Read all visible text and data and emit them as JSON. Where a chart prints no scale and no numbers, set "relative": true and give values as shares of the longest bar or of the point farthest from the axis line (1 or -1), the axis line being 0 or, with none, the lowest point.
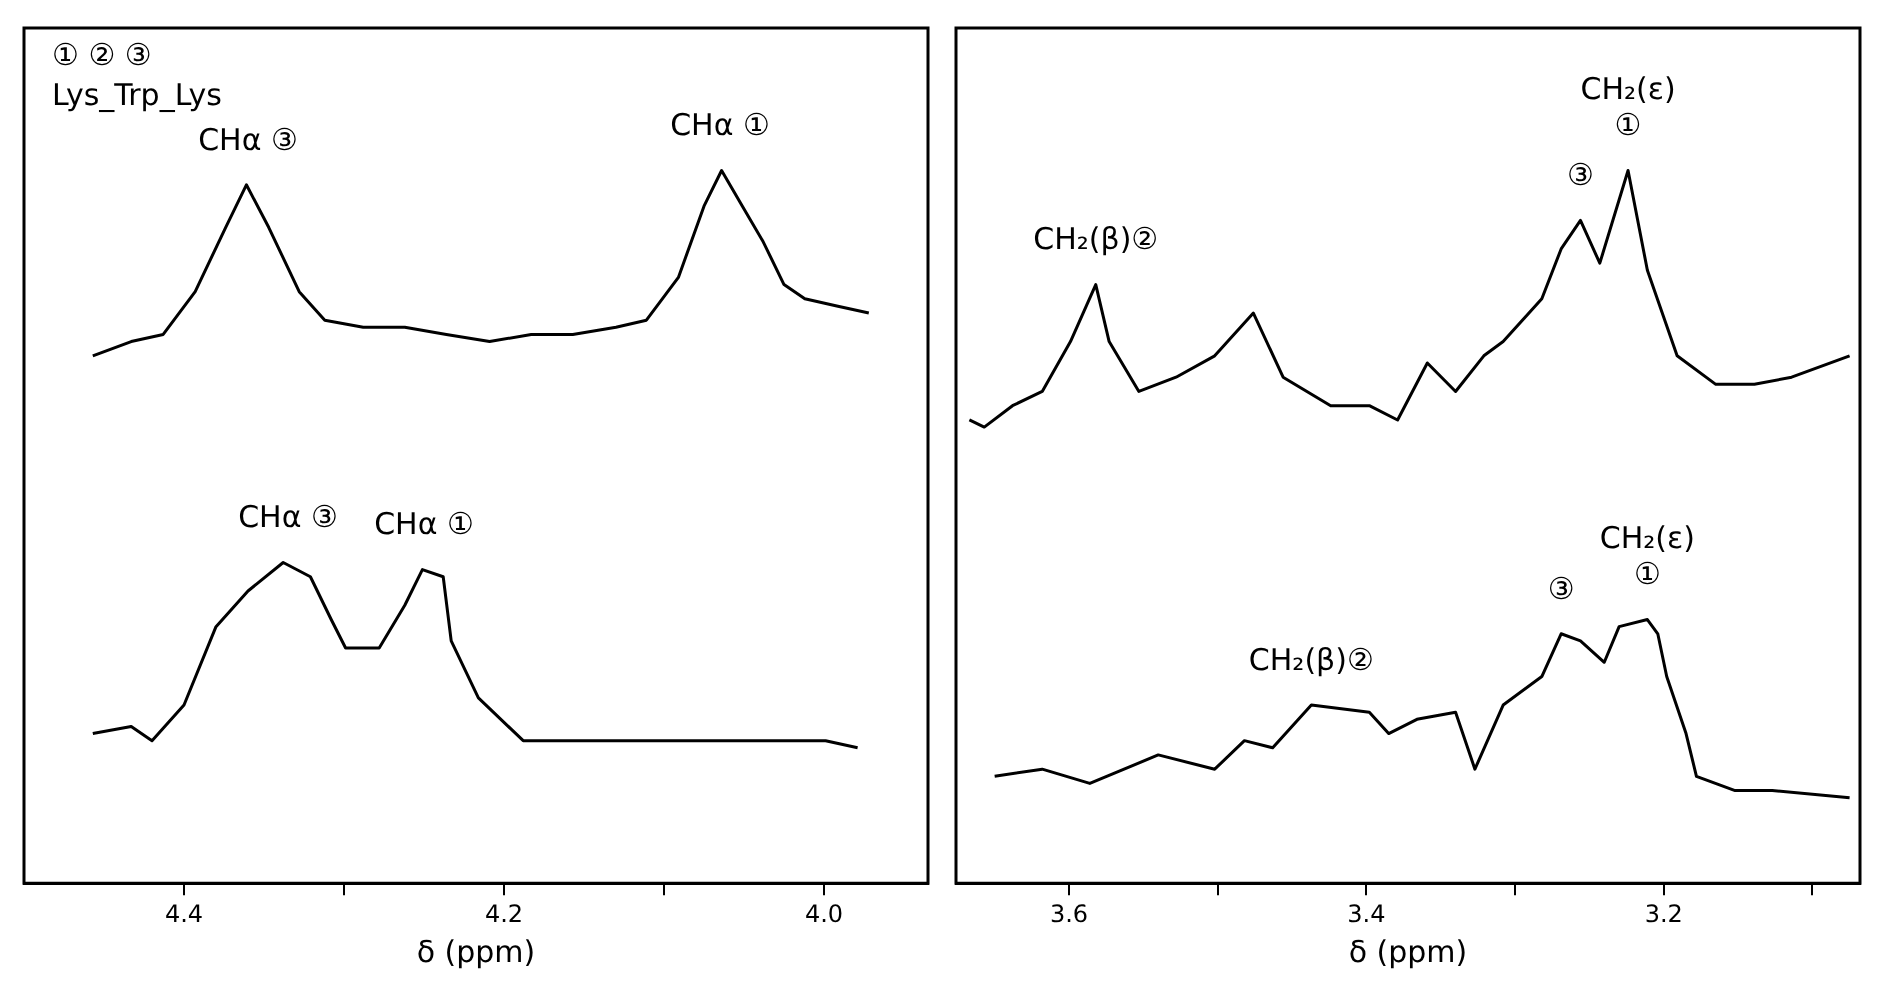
{
  "chart_data": [
    {
      "type": "line",
      "relative": true,
      "xlabel": "δ (ppm)",
      "xlim": [
        4.5,
        3.935
      ],
      "xticks": [
        4.4,
        {
          "value": 4.3,
          "label": null
        },
        4.2,
        {
          "value": 4.1,
          "label": null
        },
        {
          "value": 4.0,
          "label": "4.0"
        }
      ],
      "grid": false,
      "legend": false,
      "marker": "none",
      "line_style": "solid",
      "annotations": [
        "① ② ③",
        "Lys_Trp_Lys",
        {
          "text": "CHα ③",
          "x": 4.36,
          "y": 0.98
        },
        {
          "text": "CHα ①",
          "x": 4.065,
          "y": 1
        },
        {
          "text": "CHα ③",
          "x": 4.335,
          "y": 0.45
        },
        {
          "text": "CHα ①",
          "x": 4.25,
          "y": 0.44
        }
      ],
      "series": [
        {
          "color": "#000000",
          "x": [
            4.457,
            4.433,
            4.413,
            4.393,
            4.374,
            4.361,
            4.347,
            4.328,
            4.312,
            4.288,
            4.262,
            4.236,
            4.209,
            4.183,
            4.157,
            4.13,
            4.111,
            4.091,
            4.075,
            4.064,
            4.051,
            4.038,
            4.025,
            4.012,
            3.992,
            3.972
          ],
          "values": [
            0.74,
            0.76,
            0.77,
            0.83,
            0.92,
            0.98,
            0.92,
            0.83,
            0.79,
            0.78,
            0.78,
            0.77,
            0.76,
            0.77,
            0.77,
            0.78,
            0.79,
            0.85,
            0.95,
            1,
            0.95,
            0.9,
            0.84,
            0.82,
            0.81,
            0.8
          ]
        },
        {
          "color": "#000000",
          "x": [
            4.457,
            4.433,
            4.42,
            4.4,
            4.38,
            4.36,
            4.338,
            4.321,
            4.308,
            4.299,
            4.278,
            4.262,
            4.251,
            4.238,
            4.233,
            4.216,
            4.188,
            4.157,
            4.117,
            4.078,
            4.038,
            3.999,
            3.979
          ],
          "values": [
            0.21,
            0.22,
            0.2,
            0.25,
            0.36,
            0.41,
            0.45,
            0.43,
            0.37,
            0.33,
            0.33,
            0.39,
            0.44,
            0.43,
            0.34,
            0.26,
            0.2,
            0.2,
            0.2,
            0.2,
            0.2,
            0.2,
            0.19
          ]
        }
      ]
    },
    {
      "type": "line",
      "relative": true,
      "xlabel": "δ (ppm)",
      "xlim": [
        3.676,
        3.068
      ],
      "xticks": [
        3.6,
        {
          "value": 3.5,
          "label": null
        },
        3.4,
        {
          "value": 3.3,
          "label": null
        },
        3.2,
        {
          "value": 3.1,
          "label": null
        }
      ],
      "grid": false,
      "legend": false,
      "marker": "none",
      "line_style": "solid",
      "annotations": [
        {
          "text": "CH₂(β)②",
          "x": 3.582,
          "y": 0.84
        },
        {
          "text": "③",
          "x": 3.256,
          "y": 0.93
        },
        {
          "text": "①",
          "x": 3.224,
          "y": 1
        },
        {
          "text": "CH₂(ε)",
          "x": 3.224,
          "y": 1
        },
        {
          "text": "CH₂(β)②",
          "x": 3.437,
          "y": 0.25
        },
        {
          "text": "③",
          "x": 3.269,
          "y": 0.35
        },
        {
          "text": "①",
          "x": 3.211,
          "y": 0.37
        },
        {
          "text": "CH₂(ε)",
          "x": 3.211,
          "y": 0.37
        }
      ],
      "series": [
        {
          "color": "#000000",
          "x": [
            3.667,
            3.657,
            3.638,
            3.618,
            3.599,
            3.582,
            3.573,
            3.553,
            3.528,
            3.502,
            3.476,
            3.456,
            3.424,
            3.398,
            3.379,
            3.359,
            3.34,
            3.321,
            3.308,
            3.282,
            3.269,
            3.256,
            3.243,
            3.224,
            3.211,
            3.191,
            3.165,
            3.139,
            3.114,
            3.075
          ],
          "values": [
            0.65,
            0.64,
            0.67,
            0.69,
            0.76,
            0.84,
            0.76,
            0.69,
            0.71,
            0.74,
            0.8,
            0.71,
            0.67,
            0.67,
            0.65,
            0.73,
            0.69,
            0.74,
            0.76,
            0.82,
            0.89,
            0.93,
            0.87,
            1,
            0.86,
            0.74,
            0.7,
            0.7,
            0.71,
            0.74
          ]
        },
        {
          "color": "#000000",
          "x": [
            3.65,
            3.618,
            3.586,
            3.54,
            3.502,
            3.482,
            3.463,
            3.437,
            3.398,
            3.385,
            3.366,
            3.34,
            3.327,
            3.308,
            3.282,
            3.269,
            3.256,
            3.24,
            3.23,
            3.211,
            3.204,
            3.198,
            3.185,
            3.178,
            3.152,
            3.127,
            3.075
          ],
          "values": [
            0.15,
            0.16,
            0.14,
            0.18,
            0.16,
            0.2,
            0.19,
            0.25,
            0.24,
            0.21,
            0.23,
            0.24,
            0.16,
            0.25,
            0.29,
            0.35,
            0.34,
            0.31,
            0.36,
            0.37,
            0.35,
            0.29,
            0.21,
            0.15,
            0.13,
            0.13,
            0.12
          ]
        }
      ]
    }
  ]
}
